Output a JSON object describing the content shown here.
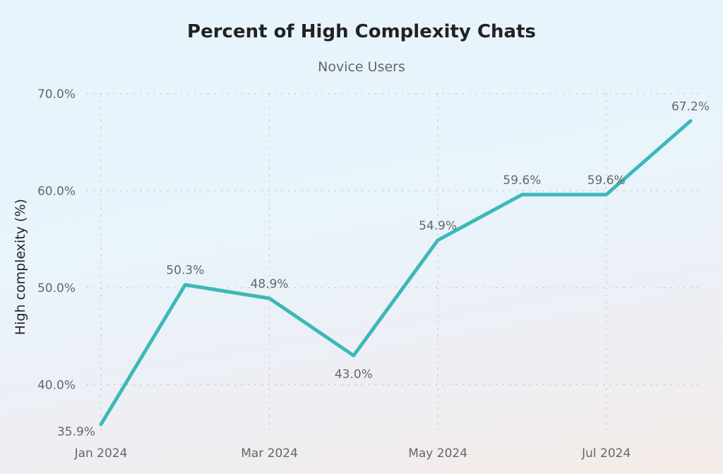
{
  "chart_data": {
    "type": "line",
    "title": "Percent of High Complexity Chats",
    "subtitle": "Novice Users",
    "xlabel": "",
    "ylabel": "High complexity (%)",
    "x": [
      "Jan 2024",
      "Feb 2024",
      "Mar 2024",
      "Apr 2024",
      "May 2024",
      "Jun 2024",
      "Jul 2024",
      "Aug 2024"
    ],
    "x_tick_labels": [
      "Jan 2024",
      "Mar 2024",
      "May 2024",
      "Jul 2024"
    ],
    "y_ticks": [
      40,
      50,
      60,
      70
    ],
    "y_tick_labels": [
      "40.0%",
      "50.0%",
      "60.0%",
      "70.0%"
    ],
    "values": [
      35.9,
      50.3,
      48.9,
      43.0,
      54.9,
      59.6,
      59.6,
      67.2
    ],
    "data_labels": [
      "35.9%",
      "50.3%",
      "48.9%",
      "43.0%",
      "54.9%",
      "59.6%",
      "59.6%",
      "67.2%"
    ],
    "ylim": [
      35,
      70
    ],
    "grid": true,
    "line_color": "#3cb8b8"
  }
}
